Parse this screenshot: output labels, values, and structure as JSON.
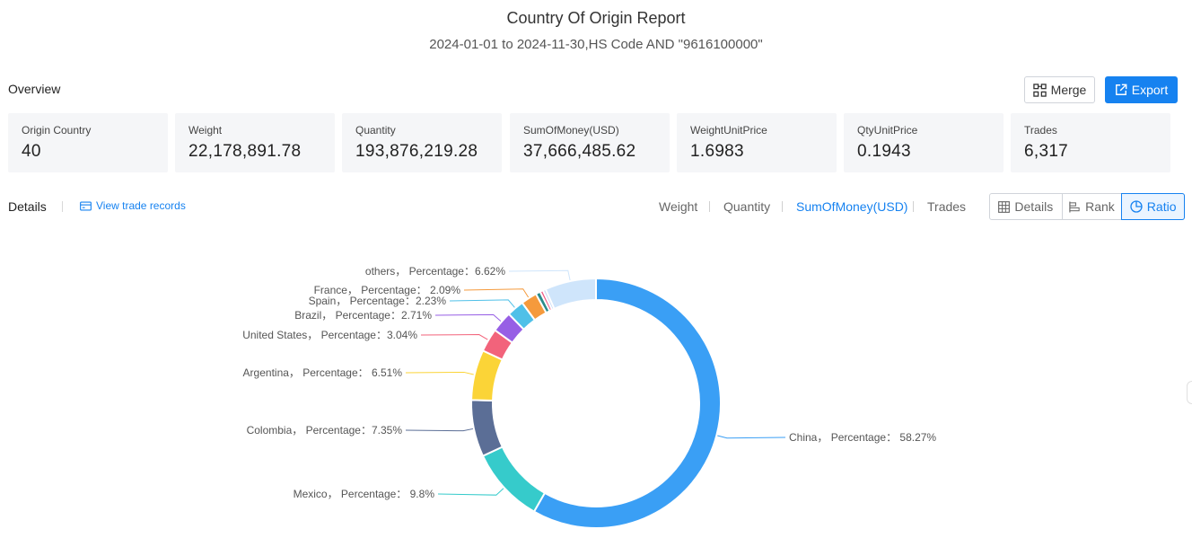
{
  "header": {
    "title": "Country Of Origin Report",
    "subtitle": "2024-01-01 to 2024-11-30,HS Code AND \"9616100000\""
  },
  "overview": {
    "label": "Overview",
    "merge_label": "Merge",
    "export_label": "Export",
    "stats": [
      {
        "label": "Origin Country",
        "value": "40"
      },
      {
        "label": "Weight",
        "value": "22,178,891.78"
      },
      {
        "label": "Quantity",
        "value": "193,876,219.28"
      },
      {
        "label": "SumOfMoney(USD)",
        "value": "37,666,485.62"
      },
      {
        "label": "WeightUnitPrice",
        "value": "1.6983"
      },
      {
        "label": "QtyUnitPrice",
        "value": "0.1943"
      },
      {
        "label": "Trades",
        "value": "6,317"
      }
    ]
  },
  "details": {
    "label": "Details",
    "view_records_label": "View trade records",
    "metric_tabs": [
      "Weight",
      "Quantity",
      "SumOfMoney(USD)",
      "Trades"
    ],
    "active_metric": "SumOfMoney(USD)",
    "view_buttons": [
      "Details",
      "Rank",
      "Ratio"
    ],
    "active_view": "Ratio"
  },
  "chart_data": {
    "type": "pie",
    "variant": "donut",
    "slices": [
      {
        "name": "China",
        "value": 58.27,
        "label": "China， Percentage： 58.27%",
        "color": "#3a9ff5"
      },
      {
        "name": "Mexico",
        "value": 9.8,
        "label": "Mexico， Percentage： 9.8%",
        "color": "#36cbcb"
      },
      {
        "name": "Colombia",
        "value": 7.35,
        "label": "Colombia， Percentage：7.35%",
        "color": "#5b6e96"
      },
      {
        "name": "Argentina",
        "value": 6.51,
        "label": "Argentina， Percentage： 6.51%",
        "color": "#fbd437"
      },
      {
        "name": "United States",
        "value": 3.04,
        "label": "United States， Percentage：3.04%",
        "color": "#f2637b"
      },
      {
        "name": "Brazil",
        "value": 2.71,
        "label": "Brazil， Percentage：2.71%",
        "color": "#975fe5"
      },
      {
        "name": "Spain",
        "value": 2.23,
        "label": "Spain， Percentage：2.23%",
        "color": "#4fc0e8"
      },
      {
        "name": "France",
        "value": 2.09,
        "label": "France， Percentage： 2.09%",
        "color": "#f59a3c"
      },
      {
        "name": "(unlabeled)",
        "value": 0.6,
        "label": "",
        "color": "#2a8c8c"
      },
      {
        "name": "(unlabeled)",
        "value": 0.4,
        "label": "",
        "color": "#f05a86"
      },
      {
        "name": "(unlabeled)",
        "value": 0.38,
        "label": "",
        "color": "#c9d9f5"
      },
      {
        "name": "others",
        "value": 6.62,
        "label": "others， Percentage：6.62%",
        "color": "#cfe5fb"
      }
    ]
  }
}
